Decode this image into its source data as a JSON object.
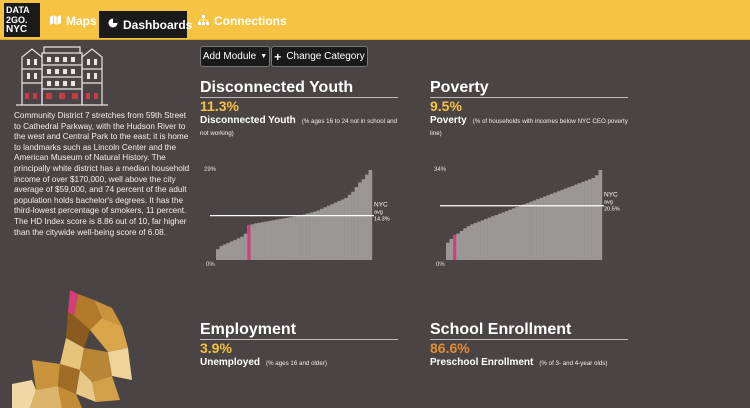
{
  "brand": {
    "line1": "DATA",
    "line2": "2GO.",
    "line3": "NYC"
  },
  "nav": {
    "maps": "Maps",
    "dashboards": "Dashboards",
    "connections": "Connections"
  },
  "toolbar": {
    "add_module": "Add Module",
    "change_category": "Change Category"
  },
  "description": "Community District 7 stretches from 59th Street to Cathedral Parkway, with the Hudson River to the west and Central Park to the east; it is home to landmarks such as Lincoln Center and the American Museum of Natural History. The principally white district has a median household income of over $170,000, well above the city average of $59,000, and 74 percent of the adult population holds bachelor's degrees. It has the third-lowest percentage of smokers, 11 percent. The HD Index score is 8.86 out of 10, far higher than the citywide well-being score of 6.08.",
  "colors": {
    "accent": "#f7c342",
    "highlight_bar": "#d63c7a",
    "bar": "#9a9796",
    "employment_value": "#f3c13a",
    "school_value": "#e48b36",
    "background": "#4a4544"
  },
  "modules": {
    "youth": {
      "title": "Disconnected Youth",
      "value": "11.3%",
      "metric": "Disconnected Youth",
      "detail": "(% ages 16 to 24 not in school and not working)"
    },
    "poverty": {
      "title": "Poverty",
      "value": "9.5%",
      "metric": "Poverty",
      "detail": "(% of households with incomes below NYC CEO poverty line)"
    },
    "employment": {
      "title": "Employment",
      "value": "3.9%",
      "metric": "Unemployed",
      "detail": "(% ages 16 and older)"
    },
    "school": {
      "title": "School Enrollment",
      "value": "86.6%",
      "metric": "Preschool Enrollment",
      "detail": "(% of 3- and 4-year olds)"
    }
  },
  "chart_data": [
    {
      "type": "bar",
      "title": "",
      "ytop_label": "29%",
      "ybottom_label": "0%",
      "ylim": [
        0,
        29
      ],
      "reference": {
        "value": 14.3,
        "label_lines": [
          "NYC",
          "avg",
          "14.3%"
        ]
      },
      "highlight_index": 9,
      "values": [
        3.5,
        4.5,
        5.0,
        5.5,
        6.0,
        6.5,
        7.0,
        7.5,
        8.5,
        11.3,
        11.5,
        11.8,
        12.0,
        12.2,
        12.4,
        12.6,
        12.8,
        13.0,
        13.2,
        13.4,
        13.6,
        13.8,
        14.0,
        14.2,
        14.4,
        14.7,
        15.0,
        15.3,
        15.6,
        16.0,
        16.5,
        17.0,
        17.5,
        18.0,
        18.5,
        19.0,
        19.5,
        20.0,
        21.0,
        22.0,
        23.5,
        25.0,
        26.0,
        27.5,
        29.0
      ]
    },
    {
      "type": "bar",
      "title": "",
      "ytop_label": "34%",
      "ybottom_label": "0%",
      "ylim": [
        0,
        34
      ],
      "reference": {
        "value": 20.5,
        "label_lines": [
          "NYC",
          "avg",
          "20.5%"
        ]
      },
      "highlight_index": 2,
      "values": [
        6.5,
        8.0,
        9.5,
        10.0,
        11.0,
        12.0,
        12.8,
        13.5,
        14.0,
        14.5,
        15.0,
        15.5,
        16.0,
        16.5,
        17.0,
        17.5,
        18.0,
        18.5,
        19.0,
        19.5,
        20.0,
        20.5,
        21.0,
        21.5,
        22.0,
        22.5,
        23.0,
        23.5,
        24.0,
        24.5,
        25.0,
        25.5,
        26.0,
        26.5,
        27.0,
        27.5,
        28.0,
        28.5,
        29.0,
        29.5,
        30.0,
        30.5,
        31.0,
        32.0,
        34.0
      ]
    }
  ]
}
